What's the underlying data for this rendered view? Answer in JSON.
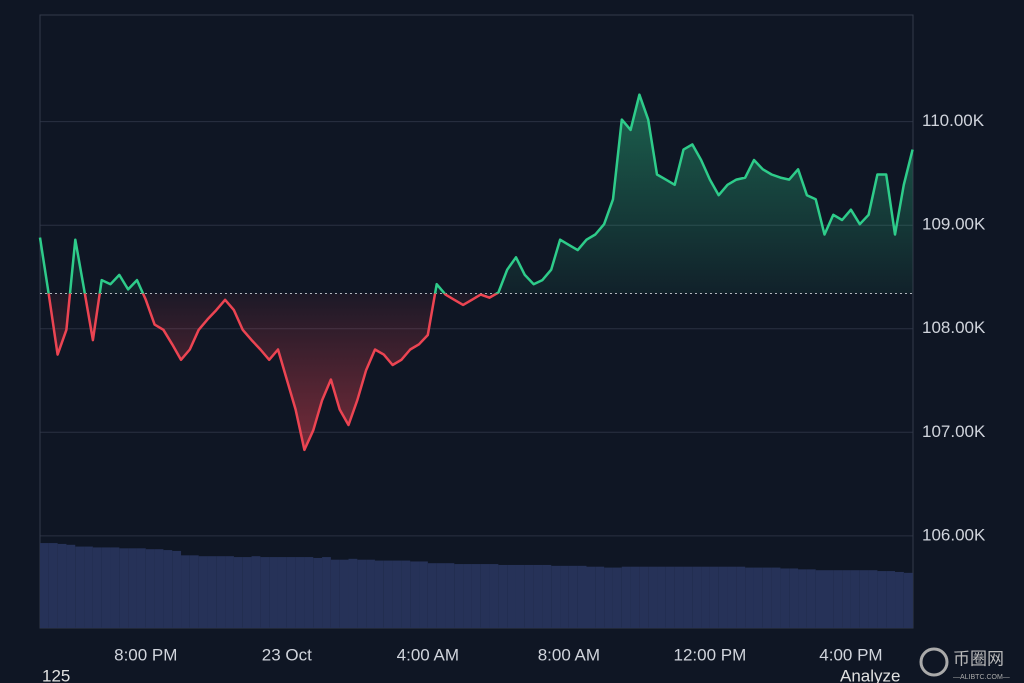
{
  "chart_data": {
    "type": "line",
    "x": [
      17,
      17.25,
      17.5,
      17.75,
      18,
      18.25,
      18.5,
      18.75,
      19,
      19.25,
      19.5,
      19.75,
      20,
      20.25,
      20.5,
      20.75,
      21,
      21.25,
      21.5,
      21.75,
      22,
      22.25,
      22.5,
      22.75,
      23,
      23.25,
      23.5,
      23.75,
      24,
      24.25,
      24.5,
      24.75,
      25,
      25.25,
      25.5,
      25.75,
      26,
      26.25,
      26.5,
      26.75,
      27,
      27.25,
      27.5,
      27.75,
      28,
      28.25,
      28.5,
      28.75,
      29,
      29.25,
      29.5,
      29.75,
      30,
      30.25,
      30.5,
      30.75,
      31,
      31.25,
      31.5,
      31.75,
      32,
      32.25,
      32.5,
      32.75,
      33,
      33.25,
      33.5,
      33.75,
      34,
      34.25,
      34.5,
      34.75,
      35,
      35.25,
      35.5,
      35.75,
      36,
      36.25,
      36.5,
      36.75,
      37,
      37.25,
      37.5,
      37.75,
      38,
      38.25,
      38.5,
      38.75,
      39,
      39.25,
      39.5,
      39.75,
      40,
      40.25,
      40.5,
      40.75,
      41,
      41.25,
      41.5,
      41.75
    ],
    "values": [
      108880,
      108330,
      107750,
      107990,
      108860,
      108380,
      107890,
      108470,
      108430,
      108520,
      108380,
      108470,
      108280,
      108040,
      107990,
      107850,
      107700,
      107800,
      107990,
      108090,
      108180,
      108280,
      108180,
      107990,
      107890,
      107800,
      107700,
      107800,
      107510,
      107220,
      106830,
      107020,
      107310,
      107510,
      107220,
      107070,
      107310,
      107600,
      107800,
      107750,
      107650,
      107700,
      107800,
      107850,
      107940,
      108430,
      108330,
      108280,
      108230,
      108280,
      108330,
      108300,
      108350,
      108570,
      108690,
      108520,
      108430,
      108470,
      108570,
      108860,
      108810,
      108760,
      108860,
      108910,
      109010,
      109250,
      110020,
      109920,
      110260,
      110020,
      109490,
      109440,
      109390,
      109730,
      109780,
      109630,
      109440,
      109290,
      109390,
      109440,
      109460,
      109630,
      109540,
      109490,
      109460,
      109440,
      109540,
      109290,
      109250,
      108910,
      109100,
      109050,
      109150,
      109010,
      109100,
      109490,
      109490,
      108910,
      109390,
      109730
    ],
    "baseline": 108340,
    "up_color": "#2ecc8a",
    "down_color": "#ec4452",
    "volume": [
      97,
      97,
      96,
      95,
      93,
      93,
      92,
      92,
      92,
      91,
      91,
      91,
      90,
      90,
      89,
      88,
      83,
      83,
      82,
      82,
      82,
      82,
      81,
      81,
      82,
      81,
      81,
      81,
      81,
      81,
      81,
      80,
      81,
      78,
      78,
      79,
      78,
      78,
      77,
      77,
      77,
      77,
      76,
      76,
      74,
      74,
      74,
      73,
      73,
      73,
      73,
      73,
      72,
      72,
      72,
      72,
      72,
      72,
      71,
      71,
      71,
      71,
      70,
      70,
      69,
      69,
      70,
      70,
      70,
      70,
      70,
      70,
      70,
      70,
      70,
      70,
      70,
      70,
      70,
      70,
      69,
      69,
      69,
      69,
      68,
      68,
      67,
      67,
      66,
      66,
      66,
      66,
      66,
      66,
      66,
      65,
      65,
      64,
      63,
      62
    ],
    "vlim": [
      0,
      700
    ],
    "volume_color": "#263258",
    "xlim": [
      17,
      41.76
    ],
    "xticks": [
      {
        "value": 20,
        "label": "8:00 PM"
      },
      {
        "value": 24,
        "label": "23 Oct"
      },
      {
        "value": 28,
        "label": "4:00 AM"
      },
      {
        "value": 32,
        "label": "8:00 AM"
      },
      {
        "value": 36,
        "label": "12:00 PM"
      },
      {
        "value": 40,
        "label": "4:00 PM"
      }
    ],
    "ylim": [
      105110,
      111030
    ],
    "yticks": [
      {
        "value": 106000,
        "label": "106.00K"
      },
      {
        "value": 107000,
        "label": "107.00K"
      },
      {
        "value": 108000,
        "label": "108.00K"
      },
      {
        "value": 109000,
        "label": "109.00K"
      },
      {
        "value": 110000,
        "label": "110.00K"
      }
    ],
    "grid": true
  },
  "footer": {
    "left": "125",
    "right": "Analyze"
  },
  "watermark": {
    "main": "币圈网",
    "sub": "—ALIBTC.COM—"
  }
}
